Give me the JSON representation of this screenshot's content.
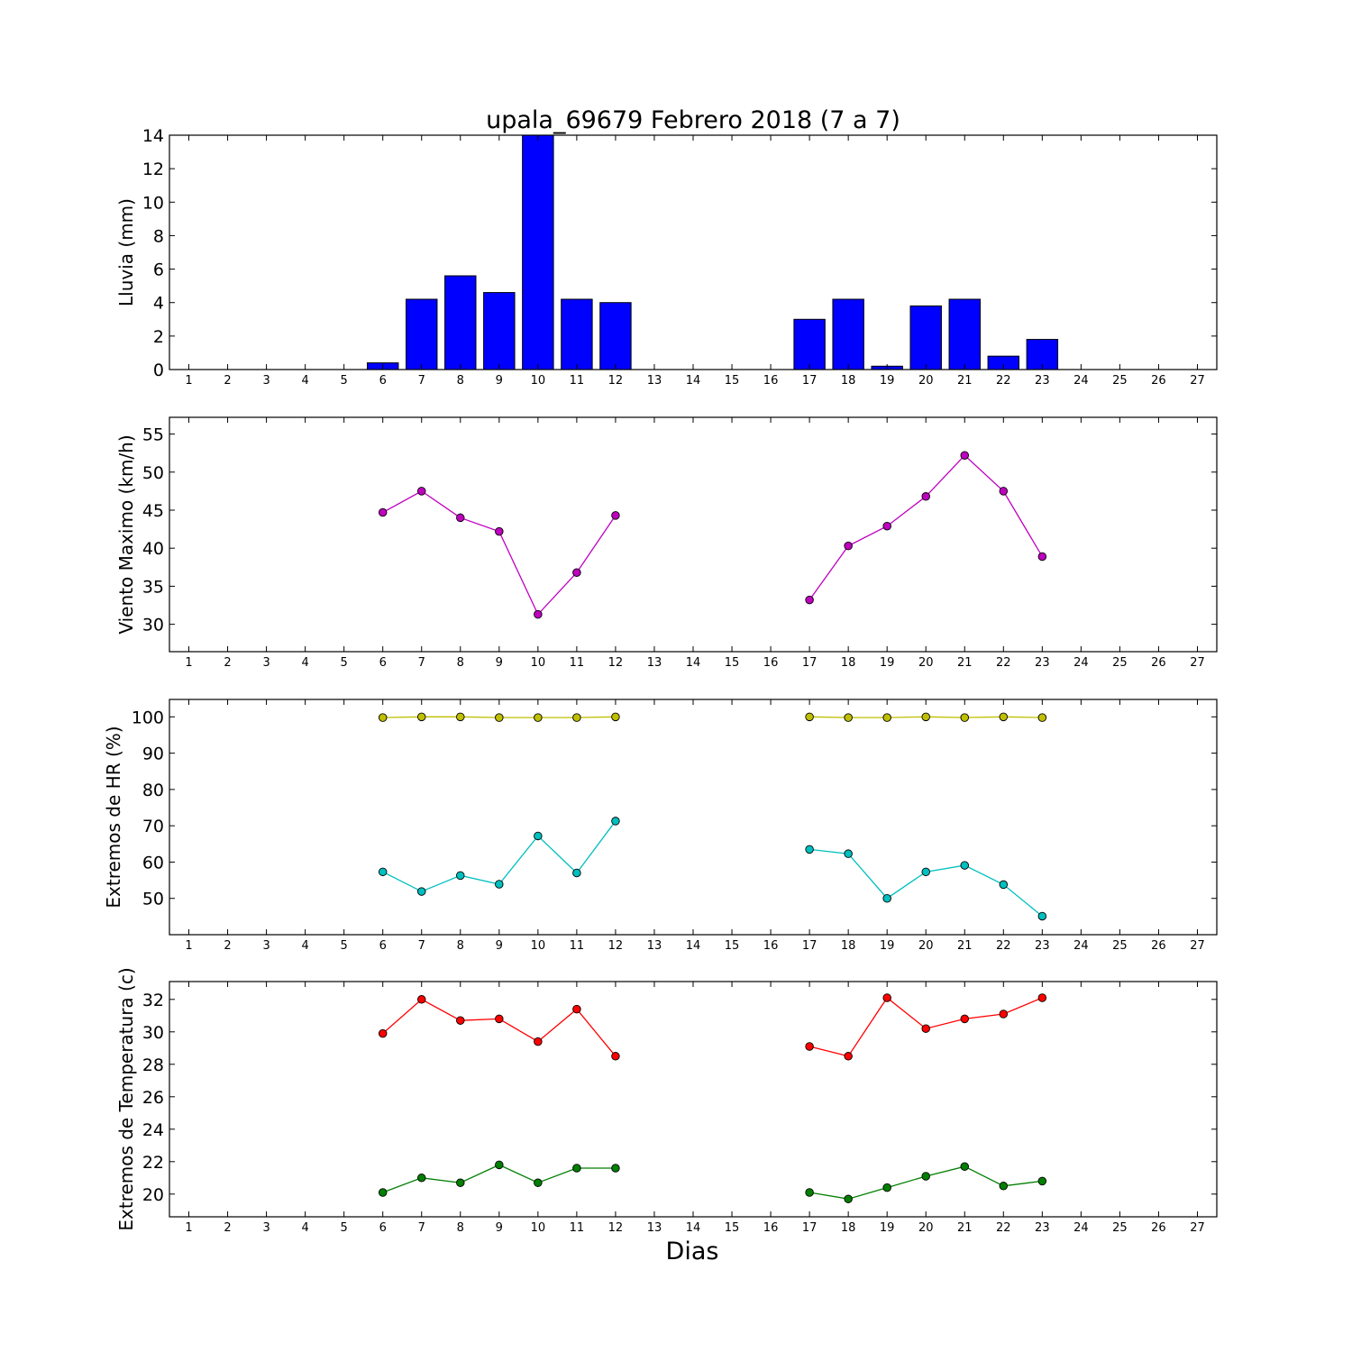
{
  "chart_data": [
    {
      "type": "bar",
      "title": "upala_69679 Febrero 2018  (7 a 7)",
      "ylabel": "Lluvia (mm)",
      "xlabel": "",
      "x": [
        1,
        2,
        3,
        4,
        5,
        6,
        7,
        8,
        9,
        10,
        11,
        12,
        13,
        14,
        15,
        16,
        17,
        18,
        19,
        20,
        21,
        22,
        23,
        24,
        25,
        26,
        27
      ],
      "xlim": [
        0.5,
        27.5
      ],
      "ylim": [
        0,
        14
      ],
      "yticks": [
        0,
        2,
        4,
        6,
        8,
        10,
        12,
        14
      ],
      "grid": false,
      "series": [
        {
          "color": "#0000ff",
          "values": [
            0,
            0,
            0,
            0,
            0,
            0.4,
            4.2,
            5.6,
            4.6,
            14.0,
            4.2,
            4.0,
            0,
            0,
            0,
            0,
            3.0,
            4.2,
            0.2,
            3.8,
            4.2,
            0.8,
            1.8,
            0,
            0,
            0,
            0
          ]
        }
      ]
    },
    {
      "type": "line",
      "ylabel": "Viento Maximo (km/h)",
      "xlabel": "",
      "x": [
        1,
        2,
        3,
        4,
        5,
        6,
        7,
        8,
        9,
        10,
        11,
        12,
        13,
        14,
        15,
        16,
        17,
        18,
        19,
        20,
        21,
        22,
        23,
        24,
        25,
        26,
        27
      ],
      "xlim": [
        0.5,
        27.5
      ],
      "ylim": [
        26.4,
        57.2
      ],
      "yticks": [
        30,
        35,
        40,
        45,
        50,
        55
      ],
      "grid": false,
      "series": [
        {
          "color": "#bf00bf",
          "values": [
            null,
            null,
            null,
            null,
            null,
            44.7,
            47.5,
            44.0,
            42.2,
            31.3,
            36.8,
            44.3,
            null,
            null,
            null,
            null,
            33.2,
            40.3,
            42.9,
            46.8,
            52.2,
            47.5,
            38.9,
            null,
            null,
            null,
            null
          ]
        }
      ]
    },
    {
      "type": "line",
      "ylabel": "Extremos de HR (%)",
      "xlabel": "",
      "x": [
        1,
        2,
        3,
        4,
        5,
        6,
        7,
        8,
        9,
        10,
        11,
        12,
        13,
        14,
        15,
        16,
        17,
        18,
        19,
        20,
        21,
        22,
        23,
        24,
        25,
        26,
        27
      ],
      "xlim": [
        0.5,
        27.5
      ],
      "ylim": [
        40,
        104.8
      ],
      "yticks": [
        50,
        60,
        70,
        80,
        90,
        100
      ],
      "grid": false,
      "series": [
        {
          "color": "#bfbf00",
          "values": [
            null,
            null,
            null,
            null,
            null,
            99.8,
            100,
            100,
            99.8,
            99.8,
            99.8,
            100,
            null,
            null,
            null,
            null,
            100,
            99.8,
            99.8,
            100,
            99.8,
            100,
            99.8,
            null,
            null,
            null,
            null
          ]
        },
        {
          "color": "#00bfbf",
          "values": [
            null,
            null,
            null,
            null,
            null,
            57.3,
            51.9,
            56.3,
            53.9,
            67.2,
            57.0,
            71.3,
            null,
            null,
            null,
            null,
            63.5,
            62.3,
            50.0,
            57.3,
            59.1,
            53.8,
            45.1,
            null,
            null,
            null,
            null
          ]
        }
      ]
    },
    {
      "type": "line",
      "ylabel": "Extremos de Temperatura (c)",
      "xlabel": "Dias",
      "x": [
        1,
        2,
        3,
        4,
        5,
        6,
        7,
        8,
        9,
        10,
        11,
        12,
        13,
        14,
        15,
        16,
        17,
        18,
        19,
        20,
        21,
        22,
        23,
        24,
        25,
        26,
        27
      ],
      "xlim": [
        0.5,
        27.5
      ],
      "ylim": [
        18.6,
        33.1
      ],
      "yticks": [
        20,
        22,
        24,
        26,
        28,
        30,
        32
      ],
      "grid": false,
      "series": [
        {
          "color": "#ff0000",
          "values": [
            null,
            null,
            null,
            null,
            null,
            29.9,
            32.0,
            30.7,
            30.8,
            29.4,
            31.4,
            28.5,
            null,
            null,
            null,
            null,
            29.1,
            28.5,
            32.1,
            30.2,
            30.8,
            31.1,
            32.1,
            null,
            null,
            null,
            null
          ]
        },
        {
          "color": "#007f00",
          "values": [
            null,
            null,
            null,
            null,
            null,
            20.1,
            21.0,
            20.7,
            21.8,
            20.7,
            21.6,
            21.6,
            null,
            null,
            null,
            null,
            20.1,
            19.7,
            20.4,
            21.1,
            21.7,
            20.5,
            20.8,
            null,
            null,
            null,
            null
          ]
        }
      ]
    }
  ]
}
